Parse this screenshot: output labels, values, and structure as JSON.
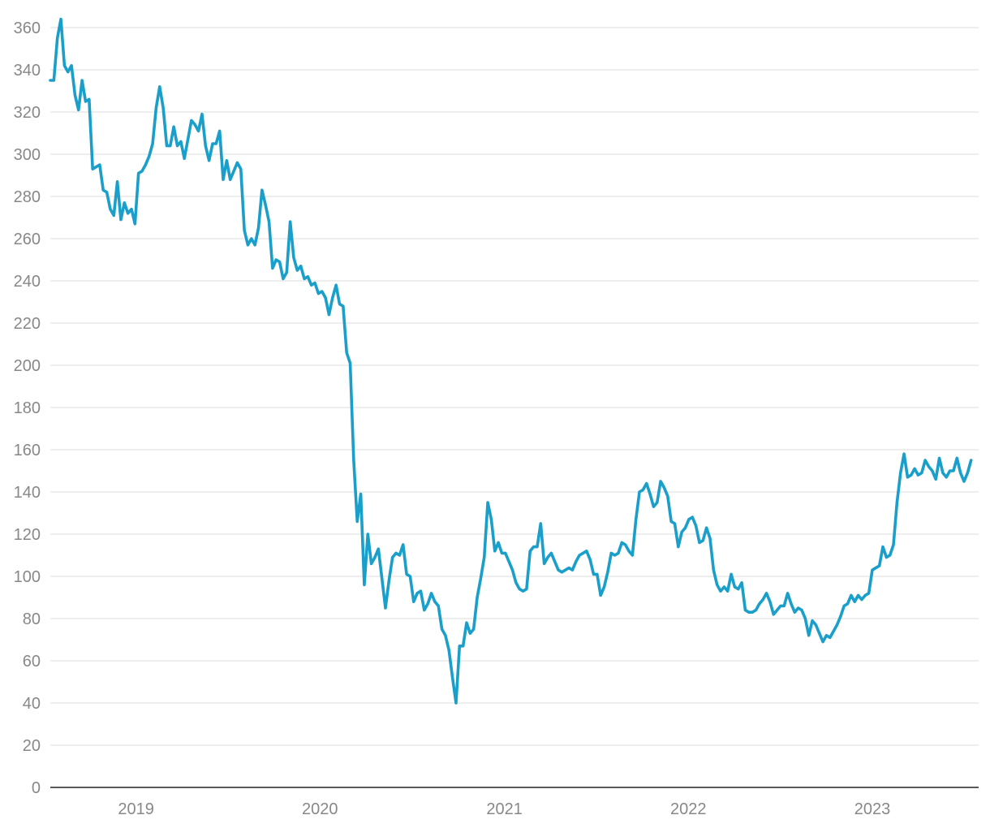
{
  "chart_data": {
    "type": "line",
    "title": "",
    "xlabel": "",
    "ylabel": "",
    "x_range": [
      "2018-07-15",
      "2023-07-31"
    ],
    "ylim": [
      0,
      360
    ],
    "y_ticks": [
      0,
      20,
      40,
      60,
      80,
      100,
      120,
      140,
      160,
      180,
      200,
      220,
      240,
      260,
      280,
      300,
      320,
      340,
      360
    ],
    "y_tick_labels": [
      "0",
      "20",
      "40",
      "60",
      "80",
      "100",
      "120",
      "140",
      "160",
      "180",
      "200",
      "220",
      "240",
      "260",
      "280",
      "300",
      "320",
      "340",
      "360"
    ],
    "x_ticks": [
      {
        "label": "2019",
        "date": "2019-01-01"
      },
      {
        "label": "2020",
        "date": "2020-01-01"
      },
      {
        "label": "2021",
        "date": "2021-01-01"
      },
      {
        "label": "2022",
        "date": "2022-01-01"
      },
      {
        "label": "2023",
        "date": "2023-01-01"
      }
    ],
    "grid": true,
    "legend": "none",
    "colors": {
      "series": "#1a9fcb",
      "grid": "#e3e3e3",
      "axis": "#222222",
      "tick_text": "#888888"
    },
    "series": [
      {
        "points": [
          [
            "2018-07-15",
            335
          ],
          [
            "2018-07-22",
            335
          ],
          [
            "2018-07-29",
            355
          ],
          [
            "2018-08-05",
            364
          ],
          [
            "2018-08-12",
            342
          ],
          [
            "2018-08-19",
            339
          ],
          [
            "2018-08-26",
            342
          ],
          [
            "2018-09-02",
            328
          ],
          [
            "2018-09-09",
            321
          ],
          [
            "2018-09-16",
            335
          ],
          [
            "2018-09-23",
            325
          ],
          [
            "2018-09-30",
            326
          ],
          [
            "2018-10-07",
            293
          ],
          [
            "2018-10-14",
            294
          ],
          [
            "2018-10-21",
            295
          ],
          [
            "2018-10-28",
            283
          ],
          [
            "2018-11-04",
            282
          ],
          [
            "2018-11-11",
            274
          ],
          [
            "2018-11-18",
            271
          ],
          [
            "2018-11-25",
            287
          ],
          [
            "2018-12-02",
            269
          ],
          [
            "2018-12-09",
            277
          ],
          [
            "2018-12-16",
            272
          ],
          [
            "2018-12-23",
            274
          ],
          [
            "2018-12-30",
            267
          ],
          [
            "2019-01-06",
            291
          ],
          [
            "2019-01-13",
            292
          ],
          [
            "2019-01-20",
            295
          ],
          [
            "2019-01-27",
            299
          ],
          [
            "2019-02-03",
            305
          ],
          [
            "2019-02-10",
            322
          ],
          [
            "2019-02-17",
            332
          ],
          [
            "2019-02-24",
            322
          ],
          [
            "2019-03-03",
            304
          ],
          [
            "2019-03-10",
            304
          ],
          [
            "2019-03-17",
            313
          ],
          [
            "2019-03-24",
            304
          ],
          [
            "2019-03-31",
            306
          ],
          [
            "2019-04-07",
            298
          ],
          [
            "2019-04-14",
            307
          ],
          [
            "2019-04-21",
            316
          ],
          [
            "2019-04-28",
            314
          ],
          [
            "2019-05-05",
            311
          ],
          [
            "2019-05-12",
            319
          ],
          [
            "2019-05-19",
            304
          ],
          [
            "2019-05-26",
            297
          ],
          [
            "2019-06-02",
            305
          ],
          [
            "2019-06-09",
            305
          ],
          [
            "2019-06-16",
            311
          ],
          [
            "2019-06-23",
            288
          ],
          [
            "2019-06-30",
            297
          ],
          [
            "2019-07-07",
            288
          ],
          [
            "2019-07-14",
            292
          ],
          [
            "2019-07-21",
            296
          ],
          [
            "2019-07-28",
            293
          ],
          [
            "2019-08-04",
            264
          ],
          [
            "2019-08-11",
            257
          ],
          [
            "2019-08-18",
            260
          ],
          [
            "2019-08-25",
            257
          ],
          [
            "2019-09-01",
            265
          ],
          [
            "2019-09-08",
            283
          ],
          [
            "2019-09-15",
            276
          ],
          [
            "2019-09-22",
            268
          ],
          [
            "2019-09-29",
            246
          ],
          [
            "2019-10-06",
            250
          ],
          [
            "2019-10-13",
            249
          ],
          [
            "2019-10-20",
            241
          ],
          [
            "2019-10-27",
            244
          ],
          [
            "2019-11-03",
            268
          ],
          [
            "2019-11-10",
            251
          ],
          [
            "2019-11-17",
            245
          ],
          [
            "2019-11-24",
            247
          ],
          [
            "2019-12-01",
            241
          ],
          [
            "2019-12-08",
            242
          ],
          [
            "2019-12-15",
            238
          ],
          [
            "2019-12-22",
            239
          ],
          [
            "2019-12-29",
            234
          ],
          [
            "2020-01-05",
            235
          ],
          [
            "2020-01-12",
            232
          ],
          [
            "2020-01-19",
            224
          ],
          [
            "2020-01-26",
            232
          ],
          [
            "2020-02-02",
            238
          ],
          [
            "2020-02-09",
            229
          ],
          [
            "2020-02-16",
            228
          ],
          [
            "2020-02-23",
            206
          ],
          [
            "2020-03-01",
            201
          ],
          [
            "2020-03-08",
            155
          ],
          [
            "2020-03-15",
            126
          ],
          [
            "2020-03-22",
            139
          ],
          [
            "2020-03-29",
            96
          ],
          [
            "2020-04-05",
            120
          ],
          [
            "2020-04-12",
            106
          ],
          [
            "2020-04-19",
            109
          ],
          [
            "2020-04-26",
            113
          ],
          [
            "2020-05-03",
            99
          ],
          [
            "2020-05-10",
            85
          ],
          [
            "2020-05-17",
            98
          ],
          [
            "2020-05-24",
            109
          ],
          [
            "2020-05-31",
            111
          ],
          [
            "2020-06-07",
            110
          ],
          [
            "2020-06-14",
            115
          ],
          [
            "2020-06-21",
            101
          ],
          [
            "2020-06-28",
            100
          ],
          [
            "2020-07-05",
            88
          ],
          [
            "2020-07-12",
            92
          ],
          [
            "2020-07-19",
            93
          ],
          [
            "2020-07-26",
            84
          ],
          [
            "2020-08-02",
            87
          ],
          [
            "2020-08-09",
            92
          ],
          [
            "2020-08-16",
            88
          ],
          [
            "2020-08-23",
            86
          ],
          [
            "2020-08-30",
            75
          ],
          [
            "2020-09-06",
            72
          ],
          [
            "2020-09-13",
            65
          ],
          [
            "2020-09-20",
            52
          ],
          [
            "2020-09-27",
            40
          ],
          [
            "2020-10-04",
            67
          ],
          [
            "2020-10-11",
            67
          ],
          [
            "2020-10-18",
            78
          ],
          [
            "2020-10-25",
            73
          ],
          [
            "2020-11-01",
            75
          ],
          [
            "2020-11-08",
            90
          ],
          [
            "2020-11-15",
            99
          ],
          [
            "2020-11-22",
            109
          ],
          [
            "2020-11-29",
            135
          ],
          [
            "2020-12-06",
            127
          ],
          [
            "2020-12-13",
            112
          ],
          [
            "2020-12-20",
            116
          ],
          [
            "2020-12-27",
            111
          ],
          [
            "2021-01-03",
            111
          ],
          [
            "2021-01-10",
            107
          ],
          [
            "2021-01-17",
            103
          ],
          [
            "2021-01-24",
            97
          ],
          [
            "2021-01-31",
            94
          ],
          [
            "2021-02-07",
            93
          ],
          [
            "2021-02-14",
            94
          ],
          [
            "2021-02-21",
            112
          ],
          [
            "2021-02-28",
            114
          ],
          [
            "2021-03-07",
            114
          ],
          [
            "2021-03-14",
            125
          ],
          [
            "2021-03-21",
            106
          ],
          [
            "2021-03-28",
            109
          ],
          [
            "2021-04-04",
            111
          ],
          [
            "2021-04-11",
            107
          ],
          [
            "2021-04-18",
            103
          ],
          [
            "2021-04-25",
            102
          ],
          [
            "2021-05-02",
            103
          ],
          [
            "2021-05-09",
            104
          ],
          [
            "2021-05-16",
            103
          ],
          [
            "2021-05-23",
            107
          ],
          [
            "2021-05-30",
            110
          ],
          [
            "2021-06-06",
            111
          ],
          [
            "2021-06-13",
            112
          ],
          [
            "2021-06-20",
            108
          ],
          [
            "2021-06-27",
            101
          ],
          [
            "2021-07-04",
            101
          ],
          [
            "2021-07-11",
            91
          ],
          [
            "2021-07-18",
            95
          ],
          [
            "2021-07-25",
            102
          ],
          [
            "2021-08-01",
            111
          ],
          [
            "2021-08-08",
            110
          ],
          [
            "2021-08-15",
            111
          ],
          [
            "2021-08-22",
            116
          ],
          [
            "2021-08-29",
            115
          ],
          [
            "2021-09-05",
            112
          ],
          [
            "2021-09-12",
            110
          ],
          [
            "2021-09-19",
            127
          ],
          [
            "2021-09-26",
            140
          ],
          [
            "2021-10-03",
            141
          ],
          [
            "2021-10-10",
            144
          ],
          [
            "2021-10-17",
            139
          ],
          [
            "2021-10-24",
            133
          ],
          [
            "2021-10-31",
            135
          ],
          [
            "2021-11-07",
            145
          ],
          [
            "2021-11-14",
            142
          ],
          [
            "2021-11-21",
            138
          ],
          [
            "2021-11-28",
            126
          ],
          [
            "2021-12-05",
            125
          ],
          [
            "2021-12-12",
            114
          ],
          [
            "2021-12-19",
            121
          ],
          [
            "2021-12-26",
            123
          ],
          [
            "2022-01-02",
            127
          ],
          [
            "2022-01-09",
            128
          ],
          [
            "2022-01-16",
            124
          ],
          [
            "2022-01-23",
            116
          ],
          [
            "2022-01-30",
            117
          ],
          [
            "2022-02-06",
            123
          ],
          [
            "2022-02-13",
            118
          ],
          [
            "2022-02-20",
            103
          ],
          [
            "2022-02-27",
            96
          ],
          [
            "2022-03-06",
            93
          ],
          [
            "2022-03-13",
            95
          ],
          [
            "2022-03-20",
            93
          ],
          [
            "2022-03-27",
            101
          ],
          [
            "2022-04-03",
            95
          ],
          [
            "2022-04-10",
            94
          ],
          [
            "2022-04-17",
            97
          ],
          [
            "2022-04-24",
            84
          ],
          [
            "2022-05-01",
            83
          ],
          [
            "2022-05-08",
            83
          ],
          [
            "2022-05-15",
            84
          ],
          [
            "2022-05-22",
            87
          ],
          [
            "2022-05-29",
            89
          ],
          [
            "2022-06-05",
            92
          ],
          [
            "2022-06-12",
            88
          ],
          [
            "2022-06-19",
            82
          ],
          [
            "2022-06-26",
            84
          ],
          [
            "2022-07-03",
            86
          ],
          [
            "2022-07-10",
            86
          ],
          [
            "2022-07-17",
            92
          ],
          [
            "2022-07-24",
            87
          ],
          [
            "2022-07-31",
            83
          ],
          [
            "2022-08-07",
            85
          ],
          [
            "2022-08-14",
            84
          ],
          [
            "2022-08-21",
            80
          ],
          [
            "2022-08-28",
            72
          ],
          [
            "2022-09-04",
            79
          ],
          [
            "2022-09-11",
            77
          ],
          [
            "2022-09-18",
            73
          ],
          [
            "2022-09-25",
            69
          ],
          [
            "2022-10-02",
            72
          ],
          [
            "2022-10-09",
            71
          ],
          [
            "2022-10-16",
            74
          ],
          [
            "2022-10-23",
            77
          ],
          [
            "2022-10-30",
            81
          ],
          [
            "2022-11-06",
            86
          ],
          [
            "2022-11-13",
            87
          ],
          [
            "2022-11-20",
            91
          ],
          [
            "2022-11-27",
            88
          ],
          [
            "2022-12-04",
            91
          ],
          [
            "2022-12-11",
            89
          ],
          [
            "2022-12-18",
            91
          ],
          [
            "2022-12-25",
            92
          ],
          [
            "2023-01-01",
            103
          ],
          [
            "2023-01-08",
            104
          ],
          [
            "2023-01-15",
            105
          ],
          [
            "2023-01-22",
            114
          ],
          [
            "2023-01-29",
            109
          ],
          [
            "2023-02-05",
            110
          ],
          [
            "2023-02-12",
            115
          ],
          [
            "2023-02-19",
            135
          ],
          [
            "2023-02-26",
            149
          ],
          [
            "2023-03-05",
            158
          ],
          [
            "2023-03-12",
            147
          ],
          [
            "2023-03-19",
            148
          ],
          [
            "2023-03-26",
            151
          ],
          [
            "2023-04-02",
            148
          ],
          [
            "2023-04-09",
            149
          ],
          [
            "2023-04-16",
            155
          ],
          [
            "2023-04-23",
            152
          ],
          [
            "2023-04-30",
            150
          ],
          [
            "2023-05-07",
            146
          ],
          [
            "2023-05-14",
            156
          ],
          [
            "2023-05-21",
            149
          ],
          [
            "2023-05-28",
            147
          ],
          [
            "2023-06-04",
            150
          ],
          [
            "2023-06-11",
            150
          ],
          [
            "2023-06-18",
            156
          ],
          [
            "2023-06-25",
            149
          ],
          [
            "2023-07-02",
            145
          ],
          [
            "2023-07-09",
            149
          ],
          [
            "2023-07-16",
            155
          ]
        ]
      }
    ]
  }
}
